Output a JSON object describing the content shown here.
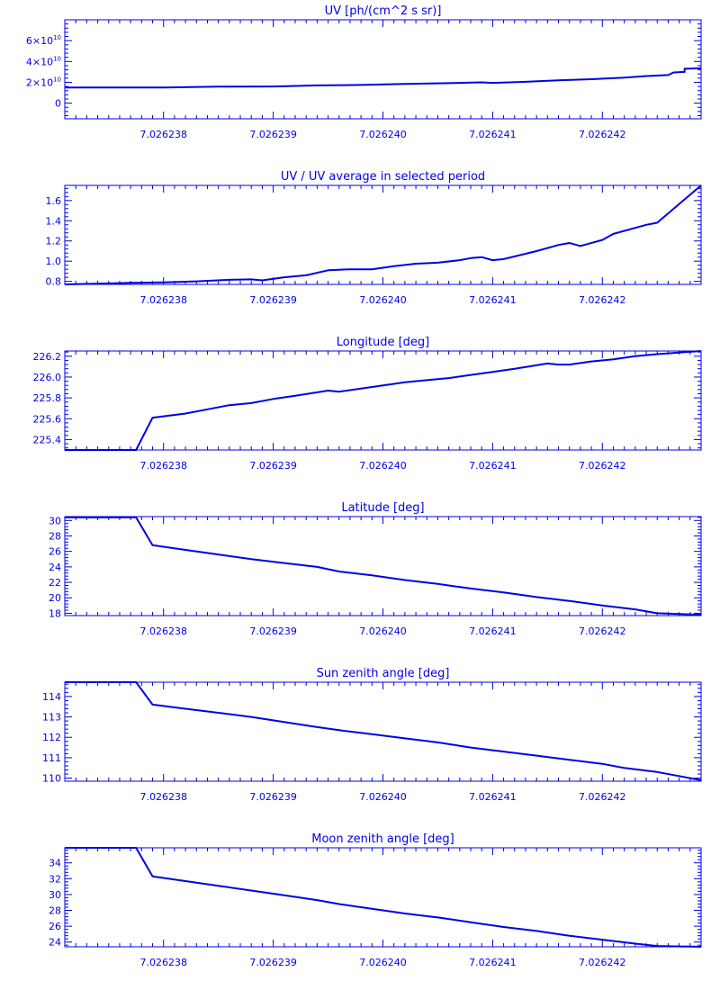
{
  "colors": {
    "ink": "#0000e6",
    "background": "#ffffff"
  },
  "chart_data": [
    {
      "type": "line",
      "title": "UV [ph/(cm^2 s sr)]",
      "xlim": [
        7.0262371,
        7.0262429
      ],
      "ylim": [
        -15000000000.0,
        80000000000.0
      ],
      "x_ticks": [
        "7.026238",
        "7.026239",
        "7.026240",
        "7.026241",
        "7.026242"
      ],
      "y_ticks": [
        {
          "value": 0,
          "base": "0",
          "exp": ""
        },
        {
          "value": 20000000000.0,
          "base": "2×10",
          "exp": "10"
        },
        {
          "value": 40000000000.0,
          "base": "4×10",
          "exp": "10"
        },
        {
          "value": 60000000000.0,
          "base": "6×10",
          "exp": "10"
        }
      ],
      "series": [
        {
          "x": [
            7.0262371,
            7.026238,
            7.0262385,
            7.026239,
            7.0262394,
            7.0262398,
            7.0262402,
            7.0262406,
            7.0262409,
            7.026241,
            7.0262413,
            7.0262416,
            7.0262419,
            7.0262422,
            7.0262424,
            7.0262426,
            7.02624265,
            7.02624275,
            7.02624275,
            7.0262429
          ],
          "y": [
            15000000000.0,
            15000000000.0,
            15800000000.0,
            16000000000.0,
            17000000000.0,
            17500000000.0,
            18500000000.0,
            19200000000.0,
            20000000000.0,
            19500000000.0,
            20500000000.0,
            22000000000.0,
            23000000000.0,
            24500000000.0,
            26000000000.0,
            27000000000.0,
            29500000000.0,
            30000000000.0,
            33000000000.0,
            33500000000.0
          ]
        }
      ]
    },
    {
      "type": "line",
      "title": "UV / UV average in selected period",
      "xlim": [
        7.0262371,
        7.0262429
      ],
      "ylim": [
        0.77,
        1.75
      ],
      "x_ticks": [
        "7.026238",
        "7.026239",
        "7.026240",
        "7.026241",
        "7.026242"
      ],
      "y_ticks": [
        {
          "value": 0.8,
          "base": "0.8",
          "exp": ""
        },
        {
          "value": 1.0,
          "base": "1.0",
          "exp": ""
        },
        {
          "value": 1.2,
          "base": "1.2",
          "exp": ""
        },
        {
          "value": 1.4,
          "base": "1.4",
          "exp": ""
        },
        {
          "value": 1.6,
          "base": "1.6",
          "exp": ""
        }
      ],
      "series": [
        {
          "x": [
            7.0262371,
            7.0262377,
            7.026238,
            7.0262383,
            7.0262386,
            7.0262388,
            7.0262389,
            7.0262391,
            7.0262393,
            7.0262395,
            7.0262397,
            7.0262399,
            7.0262401,
            7.0262403,
            7.0262405,
            7.0262407,
            7.0262408,
            7.0262409,
            7.026241,
            7.0262411,
            7.0262414,
            7.0262416,
            7.0262417,
            7.0262418,
            7.026242,
            7.0262421,
            7.0262422,
            7.0262424,
            7.0262425,
            7.0262429
          ],
          "y": [
            0.77,
            0.785,
            0.79,
            0.8,
            0.815,
            0.82,
            0.81,
            0.84,
            0.86,
            0.91,
            0.92,
            0.92,
            0.95,
            0.975,
            0.985,
            1.01,
            1.03,
            1.04,
            1.01,
            1.02,
            1.1,
            1.16,
            1.18,
            1.15,
            1.21,
            1.27,
            1.3,
            1.36,
            1.38,
            1.75
          ]
        }
      ]
    },
    {
      "type": "line",
      "title": "Longitude [deg]",
      "xlim": [
        7.0262371,
        7.0262429
      ],
      "ylim": [
        225.3,
        226.25
      ],
      "x_ticks": [
        "7.026238",
        "7.026239",
        "7.026240",
        "7.026241",
        "7.026242"
      ],
      "y_ticks": [
        {
          "value": 225.4,
          "base": "225.4",
          "exp": ""
        },
        {
          "value": 225.6,
          "base": "225.6",
          "exp": ""
        },
        {
          "value": 225.8,
          "base": "225.8",
          "exp": ""
        },
        {
          "value": 226.0,
          "base": "226.0",
          "exp": ""
        },
        {
          "value": 226.2,
          "base": "226.2",
          "exp": ""
        }
      ],
      "series": [
        {
          "x": [
            7.0262371,
            7.02623775,
            7.0262379,
            7.0262382,
            7.0262384,
            7.0262386,
            7.0262388,
            7.026239,
            7.0262392,
            7.0262395,
            7.0262396,
            7.0262398,
            7.02624,
            7.0262402,
            7.0262404,
            7.0262406,
            7.0262408,
            7.026241,
            7.0262412,
            7.0262415,
            7.0262416,
            7.0262417,
            7.0262419,
            7.0262421,
            7.0262423,
            7.0262425,
            7.0262429
          ],
          "y": [
            225.3,
            225.3,
            225.61,
            225.65,
            225.69,
            225.73,
            225.75,
            225.79,
            225.82,
            225.87,
            225.86,
            225.89,
            225.92,
            225.95,
            225.97,
            225.99,
            226.02,
            226.05,
            226.08,
            226.13,
            226.12,
            226.12,
            226.15,
            226.17,
            226.2,
            226.22,
            226.25
          ]
        }
      ]
    },
    {
      "type": "line",
      "title": "Latitude [deg]",
      "xlim": [
        7.0262371,
        7.0262429
      ],
      "ylim": [
        17.7,
        30.5
      ],
      "x_ticks": [
        "7.026238",
        "7.026239",
        "7.026240",
        "7.026241",
        "7.026242"
      ],
      "y_ticks": [
        {
          "value": 18,
          "base": "18",
          "exp": ""
        },
        {
          "value": 20,
          "base": "20",
          "exp": ""
        },
        {
          "value": 22,
          "base": "22",
          "exp": ""
        },
        {
          "value": 24,
          "base": "24",
          "exp": ""
        },
        {
          "value": 26,
          "base": "26",
          "exp": ""
        },
        {
          "value": 28,
          "base": "28",
          "exp": ""
        },
        {
          "value": 30,
          "base": "30",
          "exp": ""
        }
      ],
      "series": [
        {
          "x": [
            7.0262371,
            7.02623775,
            7.0262379,
            7.0262382,
            7.0262385,
            7.0262388,
            7.0262391,
            7.0262394,
            7.0262396,
            7.0262399,
            7.0262402,
            7.0262405,
            7.0262408,
            7.0262411,
            7.0262414,
            7.0262417,
            7.026242,
            7.0262423,
            7.0262425,
            7.0262429
          ],
          "y": [
            30.4,
            30.4,
            26.8,
            26.2,
            25.6,
            25.0,
            24.5,
            24.0,
            23.4,
            22.9,
            22.3,
            21.8,
            21.2,
            20.7,
            20.1,
            19.6,
            19.0,
            18.5,
            18.0,
            17.8
          ]
        }
      ]
    },
    {
      "type": "line",
      "title": "Sun zenith angle [deg]",
      "xlim": [
        7.0262371,
        7.0262429
      ],
      "ylim": [
        109.85,
        114.7
      ],
      "x_ticks": [
        "7.026238",
        "7.026239",
        "7.026240",
        "7.026241",
        "7.026242"
      ],
      "y_ticks": [
        {
          "value": 110,
          "base": "110",
          "exp": ""
        },
        {
          "value": 111,
          "base": "111",
          "exp": ""
        },
        {
          "value": 112,
          "base": "112",
          "exp": ""
        },
        {
          "value": 113,
          "base": "113",
          "exp": ""
        },
        {
          "value": 114,
          "base": "114",
          "exp": ""
        }
      ],
      "series": [
        {
          "x": [
            7.0262371,
            7.02623775,
            7.0262379,
            7.0262382,
            7.0262385,
            7.0262388,
            7.0262391,
            7.0262394,
            7.0262396,
            7.0262399,
            7.0262402,
            7.0262405,
            7.0262408,
            7.0262411,
            7.0262414,
            7.0262417,
            7.026242,
            7.0262422,
            7.0262425,
            7.0262429
          ],
          "y": [
            114.7,
            114.7,
            113.6,
            113.4,
            113.2,
            113.0,
            112.75,
            112.5,
            112.35,
            112.15,
            111.95,
            111.75,
            111.5,
            111.3,
            111.1,
            110.9,
            110.7,
            110.5,
            110.3,
            109.9
          ]
        }
      ]
    },
    {
      "type": "line",
      "title": "Moon zenith angle [deg]",
      "xlim": [
        7.0262371,
        7.0262429
      ],
      "ylim": [
        23.4,
        35.9
      ],
      "x_ticks": [
        "7.026238",
        "7.026239",
        "7.026240",
        "7.026241",
        "7.026242"
      ],
      "y_ticks": [
        {
          "value": 24,
          "base": "24",
          "exp": ""
        },
        {
          "value": 26,
          "base": "26",
          "exp": ""
        },
        {
          "value": 28,
          "base": "28",
          "exp": ""
        },
        {
          "value": 30,
          "base": "30",
          "exp": ""
        },
        {
          "value": 32,
          "base": "32",
          "exp": ""
        },
        {
          "value": 34,
          "base": "34",
          "exp": ""
        }
      ],
      "series": [
        {
          "x": [
            7.0262371,
            7.02623775,
            7.0262379,
            7.0262382,
            7.0262385,
            7.0262388,
            7.0262391,
            7.0262394,
            7.0262396,
            7.0262399,
            7.0262402,
            7.0262405,
            7.0262408,
            7.0262411,
            7.0262414,
            7.0262417,
            7.026242,
            7.0262423,
            7.0262425,
            7.0262429
          ],
          "y": [
            35.9,
            35.9,
            32.3,
            31.7,
            31.1,
            30.5,
            29.9,
            29.3,
            28.8,
            28.2,
            27.6,
            27.1,
            26.5,
            25.9,
            25.4,
            24.8,
            24.3,
            23.8,
            23.5,
            23.4
          ]
        }
      ]
    }
  ]
}
